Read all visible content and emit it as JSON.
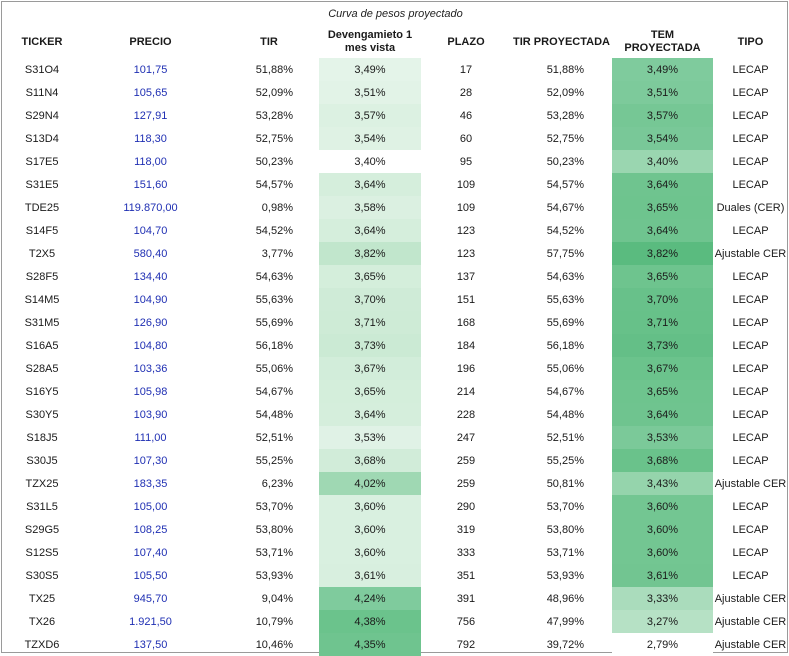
{
  "title": "Curva de pesos proyectado",
  "headers": {
    "ticker": "TICKER",
    "precio": "PRECIO",
    "tir": "TIR",
    "dev_line1": "Devengamieto 1",
    "dev_line2": "mes vista",
    "plazo": "PLAZO",
    "tir_proy": "TIR PROYECTADA",
    "tem_proy": "TEM PROYECTADA",
    "tipo": "TIPO"
  },
  "rows": [
    {
      "ticker": "S31O4",
      "precio": "101,75",
      "tir": "51,88%",
      "dev": "3,49%",
      "plazo": "17",
      "tir_proy": "51,88%",
      "tem": "3,49%",
      "tipo": "LECAP",
      "dev_color": "#e4f4e9",
      "tem_color": "#7fcb9d"
    },
    {
      "ticker": "S11N4",
      "precio": "105,65",
      "tir": "52,09%",
      "dev": "3,51%",
      "plazo": "28",
      "tir_proy": "52,09%",
      "tem": "3,51%",
      "tipo": "LECAP",
      "dev_color": "#e2f3e7",
      "tem_color": "#7dca9b"
    },
    {
      "ticker": "S29N4",
      "precio": "127,91",
      "tir": "53,28%",
      "dev": "3,57%",
      "plazo": "46",
      "tir_proy": "53,28%",
      "tem": "3,57%",
      "tipo": "LECAP",
      "dev_color": "#dcf1e2",
      "tem_color": "#76c795"
    },
    {
      "ticker": "S13D4",
      "precio": "118,30",
      "tir": "52,75%",
      "dev": "3,54%",
      "plazo": "60",
      "tir_proy": "52,75%",
      "tem": "3,54%",
      "tipo": "LECAP",
      "dev_color": "#dff2e4",
      "tem_color": "#79c898"
    },
    {
      "ticker": "S17E5",
      "precio": "118,00",
      "tir": "50,23%",
      "dev": "3,40%",
      "plazo": "95",
      "tir_proy": "50,23%",
      "tem": "3,40%",
      "tipo": "LECAP",
      "dev_color": "#ffffff",
      "tem_color": "#9ad6b0"
    },
    {
      "ticker": "S31E5",
      "precio": "151,60",
      "tir": "54,57%",
      "dev": "3,64%",
      "plazo": "109",
      "tir_proy": "54,57%",
      "tem": "3,64%",
      "tipo": "LECAP",
      "dev_color": "#d5eedc",
      "tem_color": "#6fc48f"
    },
    {
      "ticker": "TDE25",
      "precio": "119.870,00",
      "tir": "0,98%",
      "dev": "3,58%",
      "plazo": "109",
      "tir_proy": "54,67%",
      "tem": "3,65%",
      "tipo": "Duales (CER)",
      "dev_color": "#dbf0e1",
      "tem_color": "#6ec48e"
    },
    {
      "ticker": "S14F5",
      "precio": "104,70",
      "tir": "54,52%",
      "dev": "3,64%",
      "plazo": "123",
      "tir_proy": "54,52%",
      "tem": "3,64%",
      "tipo": "LECAP",
      "dev_color": "#d5eedc",
      "tem_color": "#6fc48f"
    },
    {
      "ticker": "T2X5",
      "precio": "580,40",
      "tir": "3,77%",
      "dev": "3,82%",
      "plazo": "123",
      "tir_proy": "57,75%",
      "tem": "3,82%",
      "tipo": "Ajustable CER",
      "dev_color": "#c1e6cc",
      "tem_color": "#5abb7f"
    },
    {
      "ticker": "S28F5",
      "precio": "134,40",
      "tir": "54,63%",
      "dev": "3,65%",
      "plazo": "137",
      "tir_proy": "54,63%",
      "tem": "3,65%",
      "tipo": "LECAP",
      "dev_color": "#d4eedb",
      "tem_color": "#6ec48e"
    },
    {
      "ticker": "S14M5",
      "precio": "104,90",
      "tir": "55,63%",
      "dev": "3,70%",
      "plazo": "151",
      "tir_proy": "55,63%",
      "tem": "3,70%",
      "tipo": "LECAP",
      "dev_color": "#cfebd7",
      "tem_color": "#68c18a"
    },
    {
      "ticker": "S31M5",
      "precio": "126,90",
      "tir": "55,69%",
      "dev": "3,71%",
      "plazo": "168",
      "tir_proy": "55,69%",
      "tem": "3,71%",
      "tipo": "LECAP",
      "dev_color": "#ceebd6",
      "tem_color": "#67c189"
    },
    {
      "ticker": "S16A5",
      "precio": "104,80",
      "tir": "56,18%",
      "dev": "3,73%",
      "plazo": "184",
      "tir_proy": "56,18%",
      "tem": "3,73%",
      "tipo": "LECAP",
      "dev_color": "#cbead4",
      "tem_color": "#64bf87"
    },
    {
      "ticker": "S28A5",
      "precio": "103,36",
      "tir": "55,06%",
      "dev": "3,67%",
      "plazo": "196",
      "tir_proy": "55,06%",
      "tem": "3,67%",
      "tipo": "LECAP",
      "dev_color": "#d2eddA",
      "tem_color": "#6bc38c"
    },
    {
      "ticker": "S16Y5",
      "precio": "105,98",
      "tir": "54,67%",
      "dev": "3,65%",
      "plazo": "214",
      "tir_proy": "54,67%",
      "tem": "3,65%",
      "tipo": "LECAP",
      "dev_color": "#d4eedb",
      "tem_color": "#6ec48e"
    },
    {
      "ticker": "S30Y5",
      "precio": "103,90",
      "tir": "54,48%",
      "dev": "3,64%",
      "plazo": "228",
      "tir_proy": "54,48%",
      "tem": "3,64%",
      "tipo": "LECAP",
      "dev_color": "#d5eedc",
      "tem_color": "#6fc48f"
    },
    {
      "ticker": "S18J5",
      "precio": "111,00",
      "tir": "52,51%",
      "dev": "3,53%",
      "plazo": "247",
      "tir_proy": "52,51%",
      "tem": "3,53%",
      "tipo": "LECAP",
      "dev_color": "#e0f2e6",
      "tem_color": "#7bc999"
    },
    {
      "ticker": "S30J5",
      "precio": "107,30",
      "tir": "55,25%",
      "dev": "3,68%",
      "plazo": "259",
      "tir_proy": "55,25%",
      "tem": "3,68%",
      "tipo": "LECAP",
      "dev_color": "#d1ecd9",
      "tem_color": "#6ac28b"
    },
    {
      "ticker": "TZX25",
      "precio": "183,35",
      "tir": "6,23%",
      "dev": "4,02%",
      "plazo": "259",
      "tir_proy": "50,81%",
      "tem": "3,43%",
      "tipo": "Ajustable CER",
      "dev_color": "#9fd8b3",
      "tem_color": "#95d4ac"
    },
    {
      "ticker": "S31L5",
      "precio": "105,00",
      "tir": "53,70%",
      "dev": "3,60%",
      "plazo": "290",
      "tir_proy": "53,70%",
      "tem": "3,60%",
      "tipo": "LECAP",
      "dev_color": "#d9f0e0",
      "tem_color": "#73c692"
    },
    {
      "ticker": "S29G5",
      "precio": "108,25",
      "tir": "53,80%",
      "dev": "3,60%",
      "plazo": "319",
      "tir_proy": "53,80%",
      "tem": "3,60%",
      "tipo": "LECAP",
      "dev_color": "#d9f0e0",
      "tem_color": "#73c692"
    },
    {
      "ticker": "S12S5",
      "precio": "107,40",
      "tir": "53,71%",
      "dev": "3,60%",
      "plazo": "333",
      "tir_proy": "53,71%",
      "tem": "3,60%",
      "tipo": "LECAP",
      "dev_color": "#d9f0e0",
      "tem_color": "#73c692"
    },
    {
      "ticker": "S30S5",
      "precio": "105,50",
      "tir": "53,93%",
      "dev": "3,61%",
      "plazo": "351",
      "tir_proy": "53,93%",
      "tem": "3,61%",
      "tipo": "LECAP",
      "dev_color": "#d8efdf",
      "tem_color": "#72c591"
    },
    {
      "ticker": "TX25",
      "precio": "945,70",
      "tir": "9,04%",
      "dev": "4,24%",
      "plazo": "391",
      "tir_proy": "48,96%",
      "tem": "3,33%",
      "tipo": "Ajustable CER",
      "dev_color": "#7fcb9d",
      "tem_color": "#aadcbc"
    },
    {
      "ticker": "TX26",
      "precio": "1.921,50",
      "tir": "10,79%",
      "dev": "4,38%",
      "plazo": "756",
      "tir_proy": "47,99%",
      "tem": "3,27%",
      "tipo": "Ajustable CER",
      "dev_color": "#6bc38c",
      "tem_color": "#b6e1c5"
    },
    {
      "ticker": "TZXD6",
      "precio": "137,50",
      "tir": "10,46%",
      "dev": "4,35%",
      "plazo": "792",
      "tir_proy": "39,72%",
      "tem": "2,79%",
      "tipo": "Ajustable CER",
      "dev_color": "#6fc48f",
      "tem_color": "#ffffff"
    }
  ]
}
